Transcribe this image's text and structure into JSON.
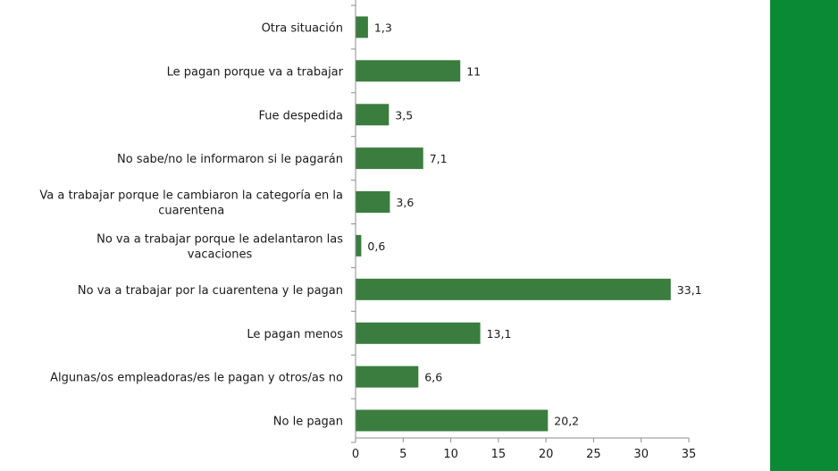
{
  "side_panel": {
    "color": "#0b8a36"
  },
  "chart_data": {
    "type": "bar",
    "orientation": "horizontal",
    "bar_color": "#3a7d3f",
    "categories": [
      [
        "Otra situación"
      ],
      [
        "Le pagan porque va a trabajar"
      ],
      [
        "Fue despedida"
      ],
      [
        "No sabe/no le informaron si le pagarán"
      ],
      [
        "Va a trabajar porque le cambiaron la categoría en la",
        "cuarentena"
      ],
      [
        "No va a trabajar porque le adelantaron las",
        "vacaciones"
      ],
      [
        "No va a trabajar por la cuarentena y le pagan"
      ],
      [
        "Le pagan menos"
      ],
      [
        "Algunas/os empleadoras/es le pagan y otros/as no"
      ],
      [
        "No le pagan"
      ]
    ],
    "values": [
      1.3,
      11,
      3.5,
      7.1,
      3.6,
      0.6,
      33.1,
      13.1,
      6.6,
      20.2
    ],
    "value_labels": [
      "1,3",
      "11",
      "3,5",
      "7,1",
      "3,6",
      "0,6",
      "33,1",
      "13,1",
      "6,6",
      "20,2"
    ],
    "xlim": [
      0,
      35
    ],
    "xticks": [
      "0",
      "5",
      "10",
      "15",
      "20",
      "25",
      "30",
      "35"
    ],
    "grid": false
  }
}
